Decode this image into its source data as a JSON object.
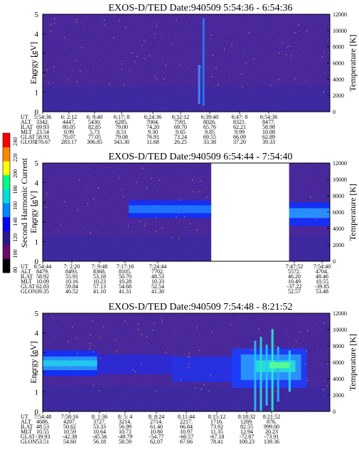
{
  "colorbar": {
    "label": "Second Harmonic Current",
    "ticks": [
      "240",
      "220",
      "200",
      "180",
      "160",
      "140",
      "120",
      "100",
      "80"
    ],
    "colors": [
      "#000000",
      "#6a0a6a",
      "#2a1a8a",
      "#0000ff",
      "#0088ff",
      "#00dddd",
      "#00ff88",
      "#ffff00",
      "#ff8800",
      "#ff0000"
    ]
  },
  "chart_data": [
    {
      "type": "heatmap",
      "title": "EXOS-D/TED   Date:940509  5:54:36 - 6:54:36",
      "ylabel": "Energy [eV]",
      "y2label": "Temperature [K]",
      "ylim": [
        0,
        5
      ],
      "y2lim": [
        0,
        12000
      ],
      "yticks": [
        "0",
        "1",
        "2",
        "3",
        "4",
        "5"
      ],
      "y2ticks": [
        "0",
        "2000",
        "4000",
        "6000",
        "8000",
        "10000",
        "12000"
      ],
      "gap": null,
      "features": [
        {
          "kind": "spike",
          "x": 0.56,
          "e0": 0.3,
          "e1": 4.8,
          "color": "#2a78ff"
        },
        {
          "kind": "spike",
          "x": 0.545,
          "e0": 0.4,
          "e1": 2.4,
          "color": "#3a90ff"
        }
      ],
      "orbit": {
        "labels": [
          "UT",
          "ALT",
          "ILAT",
          "MLT",
          "GLAT",
          "GLON"
        ],
        "columns": [
          {
            "ut": "5:54:36",
            "vals": [
              "3342.",
              "69.93",
              "23.54",
              "58.93",
              "270.67"
            ]
          },
          {
            "ut": "6: 2:12",
            "vals": [
              "4447.",
              "80.05",
              "0.99",
              "70.07",
              "283.17"
            ]
          },
          {
            "ut": "6: 9:40",
            "vals": [
              "5430.",
              "82.85",
              "5.73",
              "77.05",
              "306.85"
            ]
          },
          {
            "ut": "6:17: 8",
            "vals": [
              "6285.",
              "79.00",
              "8.51",
              "79.08",
              "343.30"
            ]
          },
          {
            "ut": "6:24:36",
            "vals": [
              "7004.",
              "74.20",
              "9.30",
              "76.91",
              "11.68"
            ]
          },
          {
            "ut": "6:32:12",
            "vals": [
              "7591.",
              "69.70",
              "9.65",
              "73.24",
              "26.25"
            ]
          },
          {
            "ut": "6:39:40",
            "vals": [
              "8026.",
              "65.76",
              "9.85",
              "69.55",
              "33.38"
            ]
          },
          {
            "ut": "6:47: 8",
            "vals": [
              "8321.",
              "62.21",
              "9.99",
              "66.09",
              "37.20"
            ]
          },
          {
            "ut": "6:54:36",
            "vals": [
              "8477.",
              "58.98",
              "10.08",
              "62.89",
              "39.33"
            ]
          }
        ]
      }
    },
    {
      "type": "heatmap",
      "title": "EXOS-D/TED   Date:940509  6:54:44 - 7:54:40",
      "ylabel": "Energy [eV]",
      "y2label": "Temperature [K]",
      "ylim": [
        0,
        5
      ],
      "y2lim": [
        0,
        12000
      ],
      "yticks": [
        "0",
        "1",
        "2",
        "3",
        "4",
        "5"
      ],
      "y2ticks": [
        "0",
        "2000",
        "4000",
        "6000",
        "8000",
        "10000",
        "12000"
      ],
      "gap": [
        0.587,
        0.858
      ],
      "features": [
        {
          "kind": "band",
          "x0": 0.3,
          "x1": 0.587,
          "e0": 2.2,
          "e1": 3.1,
          "color": "#1030ff"
        },
        {
          "kind": "band",
          "x0": 0.3,
          "x1": 0.587,
          "e0": 2.45,
          "e1": 2.85,
          "color": "#1f7dff"
        },
        {
          "kind": "band",
          "x0": 0.858,
          "x1": 1.0,
          "e0": 1.8,
          "e1": 3.0,
          "color": "#1030ff"
        },
        {
          "kind": "band",
          "x0": 0.858,
          "x1": 1.0,
          "e0": 2.2,
          "e1": 2.7,
          "color": "#2a9cff"
        }
      ],
      "orbit": {
        "labels": [
          "UT",
          "ALT",
          "ILAT",
          "MLT",
          "GLAT",
          "GLON"
        ],
        "columns": [
          {
            "ut": "6:54:44",
            "vals": [
              "8479.",
              "58.92",
              "10.09",
              "62.83",
              "39.35"
            ]
          },
          {
            "ut": "7: 2:20",
            "vals": [
              "8493.",
              "55.91",
              "10.16",
              "59.84",
              "40.52"
            ]
          },
          {
            "ut": "7: 9:48",
            "vals": [
              "8368.",
              "53.18",
              "10.23",
              "57.13",
              "41.10"
            ]
          },
          {
            "ut": "7:17:16",
            "vals": [
              "8105.",
              "50.70",
              "10.28",
              "54.68",
              "41.31"
            ]
          },
          {
            "ut": "7:24:44",
            "vals": [
              "7702.",
              "48.53",
              "10.33",
              "52.54",
              "41.30"
            ]
          },
          {
            "ut": "7:47:52",
            "vals": [
              "5572.",
              "46.20",
              "10.49",
              "-37.22",
              "52.57"
            ]
          },
          {
            "ut": "7:54:40",
            "vals": [
              "4704.",
              "48.46",
              "10.55",
              "-39.85",
              "53.48"
            ]
          }
        ]
      }
    },
    {
      "type": "heatmap",
      "title": "EXOS-D/TED   Date:940509  7:54:48 - 8:21:52",
      "ylabel": "Energy [eV]",
      "y2label": "Temperature [K]",
      "ylim": [
        0,
        5
      ],
      "y2lim": [
        0,
        12000
      ],
      "yticks": [
        "0",
        "1",
        "2",
        "3",
        "4",
        "5"
      ],
      "y2ticks": [
        "0",
        "2000",
        "4000",
        "6000",
        "8000",
        "10000",
        "12000"
      ],
      "gap": null,
      "features": [
        {
          "kind": "band",
          "x0": 0.0,
          "x1": 0.19,
          "e0": 1.8,
          "e1": 3.1,
          "color": "#1030ff"
        },
        {
          "kind": "band",
          "x0": 0.0,
          "x1": 0.19,
          "e0": 2.1,
          "e1": 2.8,
          "color": "#2a9cff"
        },
        {
          "kind": "band",
          "x0": 0.0,
          "x1": 0.19,
          "e0": 2.3,
          "e1": 2.6,
          "color": "#22d0e8"
        },
        {
          "kind": "band",
          "x0": 0.19,
          "x1": 0.45,
          "e0": 1.9,
          "e1": 2.9,
          "color": "#2a2ad8"
        },
        {
          "kind": "band",
          "x0": 0.45,
          "x1": 0.7,
          "e0": 1.5,
          "e1": 2.8,
          "color": "#2232e8"
        },
        {
          "kind": "band",
          "x0": 0.66,
          "x1": 0.92,
          "e0": 1.2,
          "e1": 3.2,
          "color": "#1a40ff"
        },
        {
          "kind": "band",
          "x0": 0.69,
          "x1": 0.9,
          "e0": 1.6,
          "e1": 2.9,
          "color": "#2a9cff"
        },
        {
          "kind": "band",
          "x0": 0.74,
          "x1": 0.88,
          "e0": 2.0,
          "e1": 2.6,
          "color": "#22e6d0"
        },
        {
          "kind": "spike",
          "x": 0.74,
          "e0": 0.0,
          "e1": 3.6,
          "color": "#28c0ff"
        },
        {
          "kind": "spike",
          "x": 0.76,
          "e0": 0.0,
          "e1": 3.8,
          "color": "#2ae0e0"
        },
        {
          "kind": "spike",
          "x": 0.78,
          "e0": 0.3,
          "e1": 3.4,
          "color": "#22c8ff"
        },
        {
          "kind": "spike",
          "x": 0.8,
          "e0": 0.0,
          "e1": 4.2,
          "color": "#2af0d0"
        },
        {
          "kind": "spike",
          "x": 0.82,
          "e0": 0.5,
          "e1": 3.3,
          "color": "#26b4ff"
        },
        {
          "kind": "spike",
          "x": 0.86,
          "e0": 1.0,
          "e1": 3.1,
          "color": "#2ad8f0"
        },
        {
          "kind": "band",
          "x0": 0.79,
          "x1": 0.86,
          "e0": 2.2,
          "e1": 2.5,
          "color": "#5dff8a"
        }
      ],
      "orbit": {
        "labels": [
          "UT",
          "ALT",
          "ILAT",
          "MLT",
          "GLAT",
          "GLON"
        ],
        "columns": [
          {
            "ut": "7:54:48",
            "vals": [
              "4686.",
              "48.53",
              "10.55",
              "-39.93",
              "53.51"
            ]
          },
          {
            "ut": "7:58:16",
            "vals": [
              "4207.",
              "50.62",
              "10.59",
              "-42.38",
              "54.60"
            ]
          },
          {
            "ut": "8: 1:36",
            "vals": [
              "3727.",
              "53.33",
              "10.64",
              "-45.56",
              "56.18"
            ]
          },
          {
            "ut": "8: 5: 4",
            "vals": [
              "3214.",
              "56.99",
              "10.71",
              "-49.79",
              "58.59"
            ]
          },
          {
            "ut": "8: 8:24",
            "vals": [
              "2714.",
              "61.40",
              "10.80",
              "-54.77",
              "62.07"
            ]
          },
          {
            "ut": "8:11:44",
            "vals": [
              "2217.",
              "66.84",
              "10.97",
              "-60.57",
              "67.66"
            ]
          },
          {
            "ut": "8:15:12",
            "vals": [
              "1716.",
              "73.92",
              "11.35",
              "-67.18",
              "78.41"
            ]
          },
          {
            "ut": "8:18:32",
            "vals": [
              "1269.",
              "82.55",
              "12.94",
              "-72.87",
              "100.23"
            ]
          },
          {
            "ut": "8:21:52",
            "vals": [
              "876.",
              "999.00",
              "20.23",
              "-73.91",
              "139.36"
            ]
          }
        ]
      }
    }
  ]
}
